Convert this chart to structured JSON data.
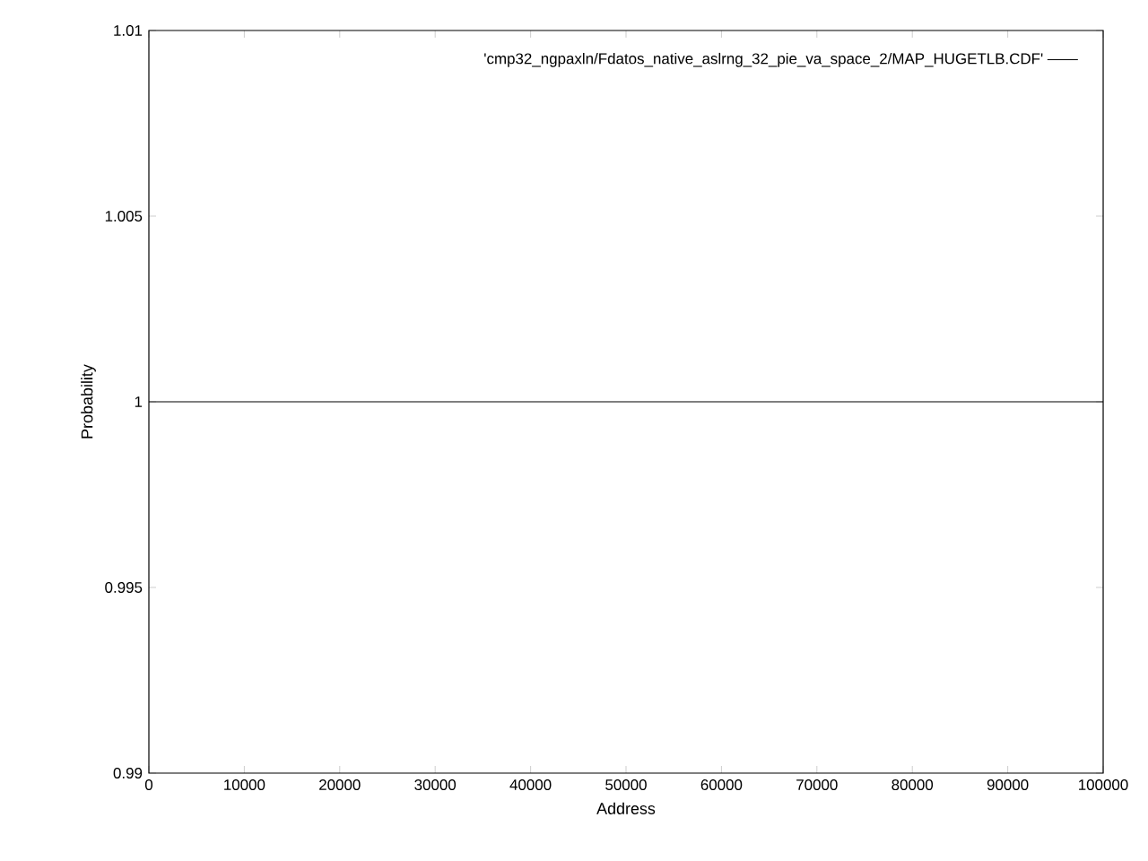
{
  "chart_data": {
    "type": "line",
    "xlabel": "Address",
    "ylabel": "Probability",
    "x": [
      0,
      100000
    ],
    "series": [
      {
        "name": "'cmp32_ngpaxln/Fdatos_native_aslrng_32_pie_va_space_2/MAP_HUGETLB.CDF'",
        "color": "#000000",
        "values": [
          1,
          1
        ]
      }
    ],
    "xlim": [
      0,
      100000
    ],
    "ylim": [
      0.99,
      1.01
    ],
    "xticks": [
      0,
      10000,
      20000,
      30000,
      40000,
      50000,
      60000,
      70000,
      80000,
      90000,
      100000
    ],
    "yticks": [
      0.99,
      0.995,
      1,
      1.005,
      1.01
    ],
    "legend": "top right"
  }
}
